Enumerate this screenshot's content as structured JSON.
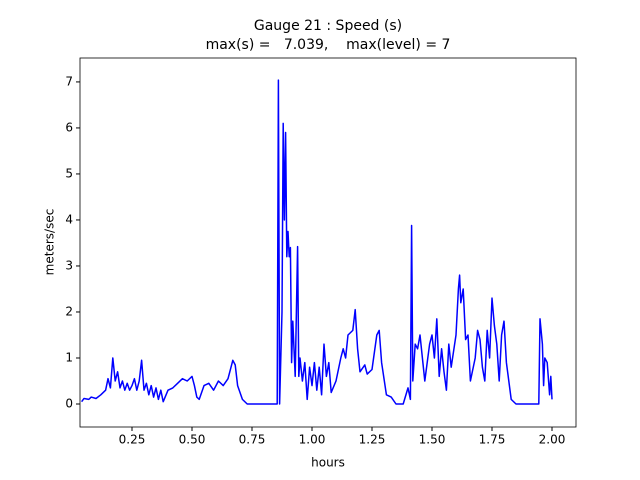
{
  "chart_data": {
    "type": "line",
    "title": "Gauge 21 : Speed (s)",
    "subtitle": "max(s) =   7.039,    max(level) = 7",
    "x_label": "hours",
    "y_label": "meters/sec",
    "series": [
      {
        "color": "#0000ff",
        "x": [
          0.04,
          0.05,
          0.07,
          0.08,
          0.1,
          0.12,
          0.14,
          0.15,
          0.16,
          0.17,
          0.18,
          0.19,
          0.2,
          0.21,
          0.22,
          0.23,
          0.24,
          0.25,
          0.26,
          0.27,
          0.28,
          0.29,
          0.3,
          0.31,
          0.32,
          0.33,
          0.34,
          0.35,
          0.36,
          0.37,
          0.38,
          0.4,
          0.42,
          0.44,
          0.46,
          0.48,
          0.5,
          0.51,
          0.52,
          0.53,
          0.55,
          0.57,
          0.59,
          0.61,
          0.63,
          0.65,
          0.67,
          0.68,
          0.69,
          0.71,
          0.73,
          0.855,
          0.86,
          0.865,
          0.875,
          0.88,
          0.885,
          0.89,
          0.895,
          0.9,
          0.905,
          0.91,
          0.915,
          0.92,
          0.93,
          0.94,
          0.945,
          0.95,
          0.96,
          0.97,
          0.98,
          0.99,
          1.0,
          1.01,
          1.02,
          1.03,
          1.04,
          1.05,
          1.06,
          1.07,
          1.08,
          1.1,
          1.12,
          1.13,
          1.14,
          1.15,
          1.17,
          1.18,
          1.19,
          1.2,
          1.22,
          1.23,
          1.25,
          1.27,
          1.28,
          1.29,
          1.31,
          1.33,
          1.35,
          1.38,
          1.4,
          1.41,
          1.415,
          1.42,
          1.43,
          1.44,
          1.45,
          1.46,
          1.47,
          1.48,
          1.49,
          1.5,
          1.51,
          1.52,
          1.53,
          1.54,
          1.55,
          1.56,
          1.57,
          1.58,
          1.6,
          1.61,
          1.615,
          1.62,
          1.63,
          1.64,
          1.65,
          1.66,
          1.68,
          1.69,
          1.7,
          1.71,
          1.72,
          1.73,
          1.74,
          1.75,
          1.76,
          1.77,
          1.78,
          1.79,
          1.8,
          1.81,
          1.83,
          1.85,
          1.945,
          1.95,
          1.96,
          1.965,
          1.97,
          1.98,
          1.99,
          1.995,
          2.0
        ],
        "values": [
          0.05,
          0.12,
          0.1,
          0.15,
          0.12,
          0.2,
          0.3,
          0.55,
          0.35,
          1.0,
          0.5,
          0.7,
          0.35,
          0.5,
          0.3,
          0.45,
          0.3,
          0.4,
          0.55,
          0.3,
          0.5,
          0.95,
          0.3,
          0.45,
          0.2,
          0.4,
          0.15,
          0.35,
          0.1,
          0.3,
          0.05,
          0.3,
          0.35,
          0.45,
          0.55,
          0.5,
          0.6,
          0.4,
          0.15,
          0.1,
          0.4,
          0.45,
          0.3,
          0.5,
          0.4,
          0.55,
          0.95,
          0.85,
          0.4,
          0.1,
          0.0,
          0.0,
          7.04,
          0.0,
          2.0,
          6.1,
          4.0,
          5.9,
          3.2,
          3.75,
          3.2,
          3.4,
          0.9,
          1.8,
          0.6,
          3.42,
          0.6,
          1.0,
          0.5,
          0.9,
          0.1,
          0.8,
          0.4,
          0.9,
          0.3,
          0.8,
          0.2,
          1.3,
          0.6,
          0.9,
          0.25,
          0.5,
          1.0,
          1.2,
          1.0,
          1.5,
          1.6,
          2.05,
          1.2,
          0.7,
          0.85,
          0.65,
          0.75,
          1.5,
          1.6,
          0.9,
          0.2,
          0.15,
          0.0,
          0.0,
          0.35,
          0.1,
          3.88,
          0.5,
          1.3,
          1.2,
          1.5,
          1.0,
          0.5,
          0.9,
          1.3,
          1.5,
          1.0,
          1.85,
          0.6,
          1.2,
          0.7,
          0.3,
          1.3,
          0.8,
          1.5,
          2.5,
          2.8,
          2.2,
          2.5,
          1.4,
          1.5,
          0.5,
          1.0,
          1.6,
          1.4,
          0.8,
          0.5,
          1.6,
          1.0,
          2.3,
          1.7,
          1.3,
          0.5,
          1.5,
          1.8,
          0.9,
          0.1,
          0.0,
          0.0,
          1.85,
          1.3,
          0.4,
          1.0,
          0.9,
          0.2,
          0.6,
          0.1
        ]
      }
    ],
    "xlim": [
      0.0333,
      2.1
    ],
    "ylim": [
      -0.5,
      7.52
    ],
    "xticks": [
      0.25,
      {
        "value": 0.5,
        "label": "0.50"
      },
      0.75,
      {
        "value": 1.0,
        "label": "1.00"
      },
      1.25,
      {
        "value": 1.5,
        "label": "1.50"
      },
      1.75,
      {
        "value": 2.0,
        "label": "2.00"
      }
    ],
    "yticks": [
      0,
      1,
      2,
      3,
      4,
      5,
      6,
      7
    ]
  }
}
